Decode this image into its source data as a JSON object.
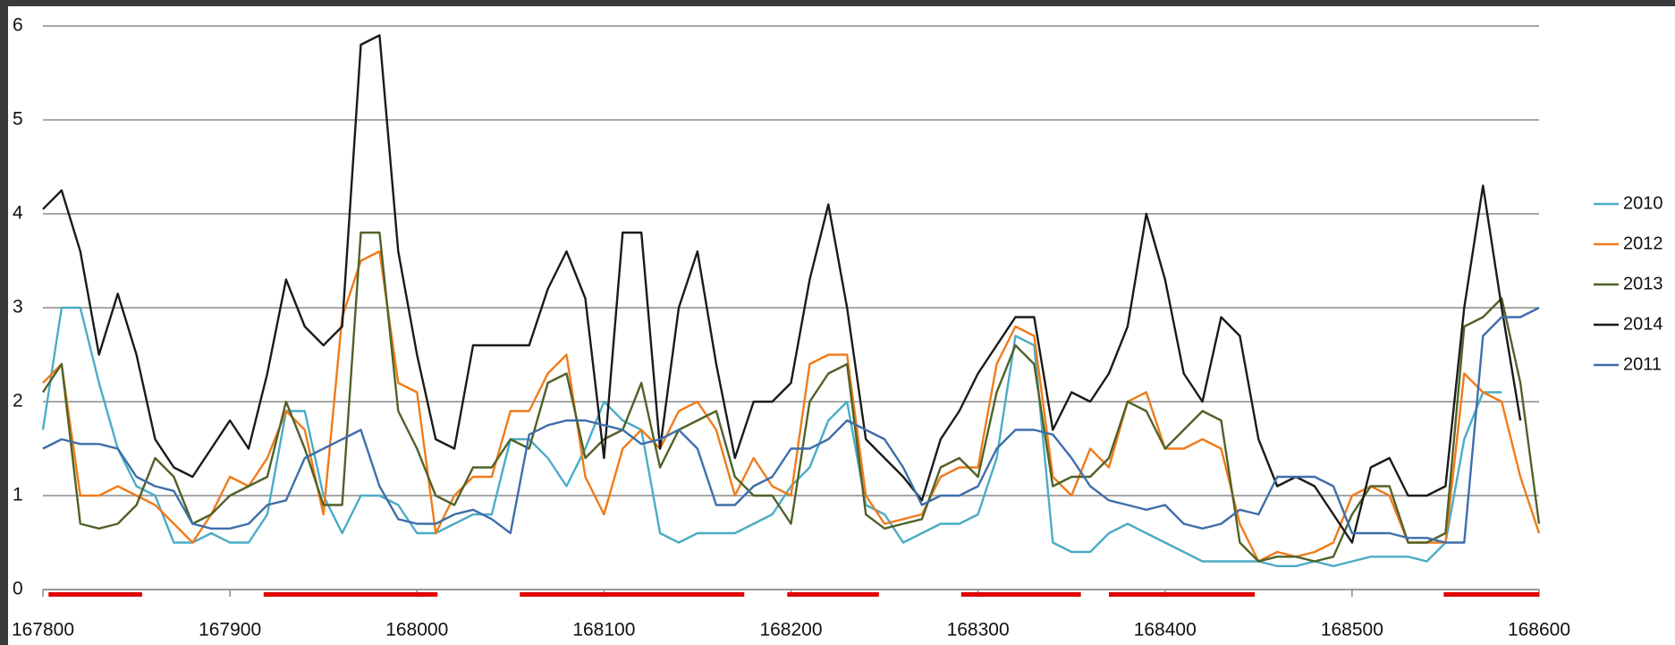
{
  "chart_data": {
    "type": "line",
    "x": [
      167800,
      167810,
      167820,
      167830,
      167840,
      167850,
      167860,
      167870,
      167880,
      167890,
      167900,
      167910,
      167920,
      167930,
      167940,
      167950,
      167960,
      167970,
      167980,
      167990,
      168000,
      168010,
      168020,
      168030,
      168040,
      168050,
      168060,
      168070,
      168080,
      168090,
      168100,
      168110,
      168120,
      168130,
      168140,
      168150,
      168160,
      168170,
      168180,
      168190,
      168200,
      168210,
      168220,
      168230,
      168240,
      168250,
      168260,
      168270,
      168280,
      168290,
      168300,
      168310,
      168320,
      168330,
      168340,
      168350,
      168360,
      168370,
      168380,
      168390,
      168400,
      168410,
      168420,
      168430,
      168440,
      168450,
      168460,
      168470,
      168480,
      168490,
      168500,
      168510,
      168520,
      168530,
      168540,
      168550,
      168560,
      168570,
      168580,
      168590,
      168600
    ],
    "series": [
      {
        "name": "2010",
        "color": "#4bacc6",
        "values": [
          1.7,
          3.0,
          3.0,
          2.2,
          1.5,
          1.1,
          1.0,
          0.5,
          0.5,
          0.6,
          0.5,
          0.5,
          0.8,
          1.9,
          1.9,
          1.0,
          0.6,
          1.0,
          1.0,
          0.9,
          0.6,
          0.6,
          0.7,
          0.8,
          0.8,
          1.6,
          1.6,
          1.4,
          1.1,
          1.5,
          2.0,
          1.8,
          1.7,
          0.6,
          0.5,
          0.6,
          0.6,
          0.6,
          0.7,
          0.8,
          1.1,
          1.3,
          1.8,
          2.0,
          0.9,
          0.8,
          0.5,
          0.6,
          0.7,
          0.7,
          0.8,
          1.4,
          2.7,
          2.6,
          0.5,
          0.4,
          0.4,
          0.6,
          0.7,
          0.6,
          0.5,
          0.4,
          0.3,
          0.3,
          0.3,
          0.3,
          0.25,
          0.25,
          0.3,
          0.25,
          0.3,
          0.35,
          0.35,
          0.35,
          0.3,
          0.5,
          1.6,
          2.1,
          2.1,
          null,
          null
        ]
      },
      {
        "name": "2012",
        "color": "#f07b1a",
        "values": [
          2.2,
          2.4,
          1.0,
          1.0,
          1.1,
          1.0,
          0.9,
          0.7,
          0.5,
          0.8,
          1.2,
          1.1,
          1.4,
          1.9,
          1.7,
          0.8,
          2.9,
          3.5,
          3.6,
          2.2,
          2.1,
          0.6,
          1.0,
          1.2,
          1.2,
          1.9,
          1.9,
          2.3,
          2.5,
          1.2,
          0.8,
          1.5,
          1.7,
          1.5,
          1.9,
          2.0,
          1.7,
          1.0,
          1.4,
          1.1,
          1.0,
          2.4,
          2.5,
          2.5,
          1.0,
          0.7,
          0.75,
          0.8,
          1.2,
          1.3,
          1.3,
          2.4,
          2.8,
          2.7,
          1.2,
          1.0,
          1.5,
          1.3,
          2.0,
          2.1,
          1.5,
          1.5,
          1.6,
          1.5,
          0.7,
          0.3,
          0.4,
          0.35,
          0.4,
          0.5,
          1.0,
          1.1,
          1.0,
          0.5,
          0.5,
          0.5,
          2.3,
          2.1,
          2.0,
          1.2,
          0.6
        ]
      },
      {
        "name": "2013",
        "color": "#4f6228",
        "values": [
          2.1,
          2.4,
          0.7,
          0.65,
          0.7,
          0.9,
          1.4,
          1.2,
          0.7,
          0.8,
          1.0,
          1.1,
          1.2,
          2.0,
          1.5,
          0.9,
          0.9,
          3.8,
          3.8,
          1.9,
          1.5,
          1.0,
          0.9,
          1.3,
          1.3,
          1.6,
          1.5,
          2.2,
          2.3,
          1.4,
          1.6,
          1.7,
          2.2,
          1.3,
          1.7,
          1.8,
          1.9,
          1.2,
          1.0,
          1.0,
          0.7,
          2.0,
          2.3,
          2.4,
          0.8,
          0.65,
          0.7,
          0.75,
          1.3,
          1.4,
          1.2,
          2.1,
          2.6,
          2.4,
          1.1,
          1.2,
          1.2,
          1.4,
          2.0,
          1.9,
          1.5,
          1.7,
          1.9,
          1.8,
          0.5,
          0.3,
          0.35,
          0.35,
          0.3,
          0.35,
          0.8,
          1.1,
          1.1,
          0.5,
          0.5,
          0.6,
          2.8,
          2.9,
          3.1,
          2.2,
          0.7
        ]
      },
      {
        "name": "2014",
        "color": "#1a1a1a",
        "values": [
          4.05,
          4.25,
          3.6,
          2.5,
          3.15,
          2.5,
          1.6,
          1.3,
          1.2,
          1.5,
          1.8,
          1.5,
          2.3,
          3.3,
          2.8,
          2.6,
          2.8,
          5.8,
          5.9,
          3.6,
          2.5,
          1.6,
          1.5,
          2.6,
          2.6,
          2.6,
          2.6,
          3.2,
          3.6,
          3.1,
          1.4,
          3.8,
          3.8,
          1.5,
          3.0,
          3.6,
          2.4,
          1.4,
          2.0,
          2.0,
          2.2,
          3.3,
          4.1,
          3.0,
          1.6,
          1.4,
          1.2,
          0.95,
          1.6,
          1.9,
          2.3,
          2.6,
          2.9,
          2.9,
          1.7,
          2.1,
          2.0,
          2.3,
          2.8,
          4.0,
          3.3,
          2.3,
          2.0,
          2.9,
          2.7,
          1.6,
          1.1,
          1.2,
          1.1,
          0.8,
          0.5,
          1.3,
          1.4,
          1.0,
          1.0,
          1.1,
          3.0,
          4.3,
          3.0,
          1.8,
          null
        ]
      },
      {
        "name": "2011",
        "color": "#3f6eaa",
        "values": [
          1.5,
          1.6,
          1.55,
          1.55,
          1.5,
          1.2,
          1.1,
          1.05,
          0.7,
          0.65,
          0.65,
          0.7,
          0.9,
          0.95,
          1.4,
          1.5,
          1.6,
          1.7,
          1.1,
          0.75,
          0.7,
          0.7,
          0.8,
          0.85,
          0.75,
          0.6,
          1.65,
          1.75,
          1.8,
          1.8,
          1.75,
          1.7,
          1.55,
          1.6,
          1.7,
          1.5,
          0.9,
          0.9,
          1.1,
          1.2,
          1.5,
          1.5,
          1.6,
          1.8,
          1.7,
          1.6,
          1.3,
          0.9,
          1.0,
          1.0,
          1.1,
          1.5,
          1.7,
          1.7,
          1.65,
          1.4,
          1.1,
          0.95,
          0.9,
          0.85,
          0.9,
          0.7,
          0.65,
          0.7,
          0.85,
          0.8,
          1.2,
          1.2,
          1.2,
          1.1,
          0.6,
          0.6,
          0.6,
          0.55,
          0.55,
          0.5,
          0.5,
          2.7,
          2.9,
          2.9,
          3.0
        ]
      }
    ],
    "highlight_ranges": [
      [
        167803,
        167853
      ],
      [
        167918,
        168011
      ],
      [
        168055,
        168175
      ],
      [
        168198,
        168247
      ],
      [
        168291,
        168355
      ],
      [
        168370,
        168448
      ],
      [
        168549,
        168600
      ]
    ],
    "highlight_color": "#e00000",
    "xlim": [
      167800,
      168600
    ],
    "xticks": [
      167800,
      167900,
      168000,
      168100,
      168200,
      168300,
      168400,
      168500,
      168600
    ],
    "ylim": [
      0,
      6
    ],
    "yticks": [
      0,
      1,
      2,
      3,
      4,
      5,
      6
    ],
    "grid": true,
    "legend": "right"
  }
}
